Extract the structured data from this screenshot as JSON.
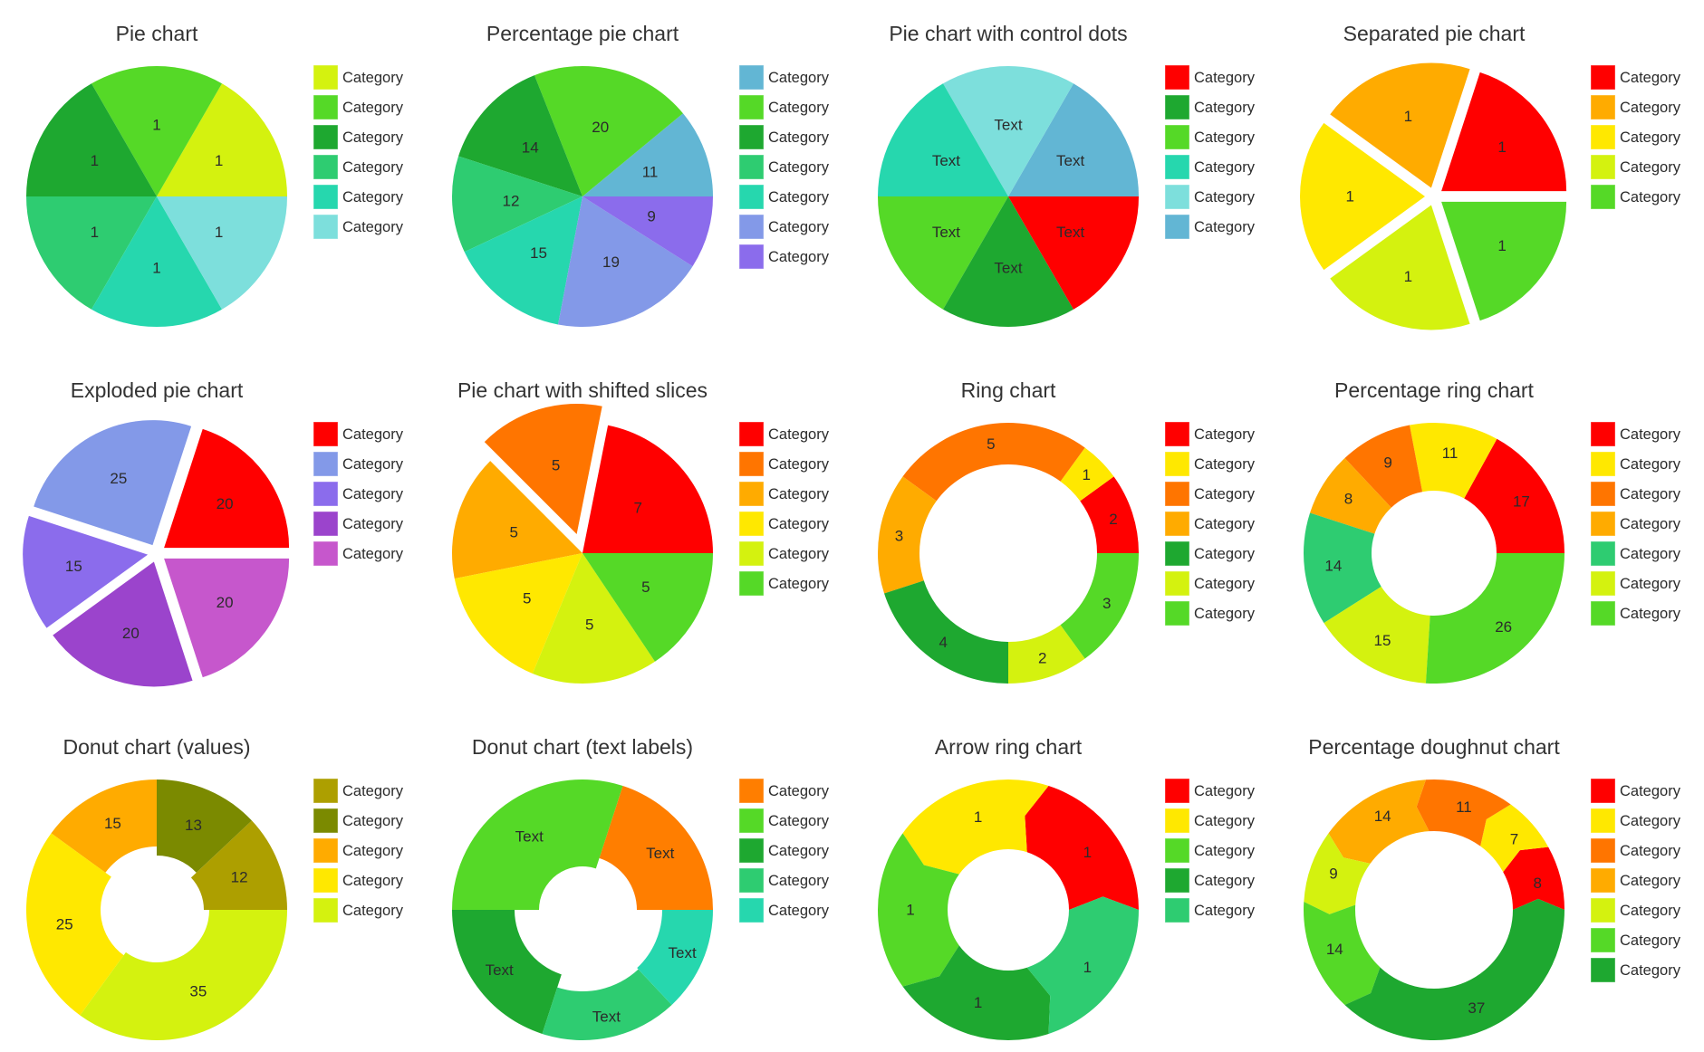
{
  "legend_label": "Category",
  "chart_data": [
    {
      "type": "pie",
      "variant": "plain",
      "title": "Pie chart",
      "slices": [
        {
          "label": "Category",
          "value": 1,
          "text": "1",
          "color": "#d4f20f"
        },
        {
          "label": "Category",
          "value": 1,
          "text": "1",
          "color": "#55d927"
        },
        {
          "label": "Category",
          "value": 1,
          "text": "1",
          "color": "#1ea830"
        },
        {
          "label": "Category",
          "value": 1,
          "text": "1",
          "color": "#2ecc71"
        },
        {
          "label": "Category",
          "value": 1,
          "text": "1",
          "color": "#26d7ae"
        },
        {
          "label": "Category",
          "value": 1,
          "text": "1",
          "color": "#7ddfdc"
        }
      ]
    },
    {
      "type": "pie",
      "variant": "plain",
      "title": "Percentage pie chart",
      "slices": [
        {
          "label": "Category",
          "value": 11,
          "text": "11",
          "color": "#62b6d4"
        },
        {
          "label": "Category",
          "value": 20,
          "text": "20",
          "color": "#55d927"
        },
        {
          "label": "Category",
          "value": 14,
          "text": "14",
          "color": "#1ea830"
        },
        {
          "label": "Category",
          "value": 12,
          "text": "12",
          "color": "#2ecc71"
        },
        {
          "label": "Category",
          "value": 15,
          "text": "15",
          "color": "#26d7ae"
        },
        {
          "label": "Category",
          "value": 19,
          "text": "19",
          "color": "#8399e8"
        },
        {
          "label": "Category",
          "value": 9,
          "text": "9",
          "color": "#8b6cec"
        }
      ]
    },
    {
      "type": "pie",
      "variant": "plain",
      "title": "Pie chart with control dots",
      "slices": [
        {
          "label": "Category",
          "value": 1,
          "text": "Text",
          "color": "#62b6d4"
        },
        {
          "label": "Category",
          "value": 1,
          "text": "Text",
          "color": "#7ddfdc"
        },
        {
          "label": "Category",
          "value": 1,
          "text": "Text",
          "color": "#26d7ae"
        },
        {
          "label": "Category",
          "value": 1,
          "text": "Text",
          "color": "#55d927"
        },
        {
          "label": "Category",
          "value": 1,
          "text": "Text",
          "color": "#1ea830"
        },
        {
          "label": "Category",
          "value": 1,
          "text": "Text",
          "color": "#ff0000"
        }
      ],
      "legend_order": [
        5,
        4,
        3,
        2,
        1,
        0
      ]
    },
    {
      "type": "pie",
      "variant": "separated",
      "title": "Separated pie chart",
      "slices": [
        {
          "label": "Category",
          "value": 1,
          "text": "1",
          "color": "#ff0000"
        },
        {
          "label": "Category",
          "value": 1,
          "text": "1",
          "color": "#ffab00"
        },
        {
          "label": "Category",
          "value": 1,
          "text": "1",
          "color": "#ffe800"
        },
        {
          "label": "Category",
          "value": 1,
          "text": "1",
          "color": "#d4f20f"
        },
        {
          "label": "Category",
          "value": 1,
          "text": "1",
          "color": "#55d927"
        }
      ]
    },
    {
      "type": "pie",
      "variant": "exploded",
      "title": "Exploded pie chart",
      "slices": [
        {
          "label": "Category",
          "value": 20,
          "text": "20",
          "color": "#ff0000"
        },
        {
          "label": "Category",
          "value": 25,
          "text": "25",
          "color": "#8399e8"
        },
        {
          "label": "Category",
          "value": 15,
          "text": "15",
          "color": "#8b6cec"
        },
        {
          "label": "Category",
          "value": 20,
          "text": "20",
          "color": "#9b44cc"
        },
        {
          "label": "Category",
          "value": 20,
          "text": "20",
          "color": "#c657cc"
        }
      ]
    },
    {
      "type": "pie",
      "variant": "shifted",
      "title": "Pie chart with shifted slices",
      "slices": [
        {
          "label": "Category",
          "value": 7,
          "text": "7",
          "color": "#ff0000"
        },
        {
          "label": "Category",
          "value": 5,
          "text": "5",
          "color": "#ff7500",
          "shifted": true
        },
        {
          "label": "Category",
          "value": 5,
          "text": "5",
          "color": "#ffab00"
        },
        {
          "label": "Category",
          "value": 5,
          "text": "5",
          "color": "#ffe800"
        },
        {
          "label": "Category",
          "value": 5,
          "text": "5",
          "color": "#d4f20f"
        },
        {
          "label": "Category",
          "value": 5,
          "text": "5",
          "color": "#55d927"
        }
      ]
    },
    {
      "type": "ring",
      "variant": "ring",
      "title": "Ring chart",
      "slices": [
        {
          "label": "Category",
          "value": 2,
          "text": "2",
          "color": "#ff0000"
        },
        {
          "label": "Category",
          "value": 1,
          "text": "1",
          "color": "#ffe800"
        },
        {
          "label": "Category",
          "value": 5,
          "text": "5",
          "color": "#ff7500"
        },
        {
          "label": "Category",
          "value": 3,
          "text": "3",
          "color": "#ffab00"
        },
        {
          "label": "Category",
          "value": 4,
          "text": "4",
          "color": "#1ea830"
        },
        {
          "label": "Category",
          "value": 2,
          "text": "2",
          "color": "#d4f20f"
        },
        {
          "label": "Category",
          "value": 3,
          "text": "3",
          "color": "#55d927"
        }
      ]
    },
    {
      "type": "ring",
      "variant": "ring-thick",
      "title": "Percentage ring chart",
      "slices": [
        {
          "label": "Category",
          "value": 17,
          "text": "17",
          "color": "#ff0000"
        },
        {
          "label": "Category",
          "value": 11,
          "text": "11",
          "color": "#ffe800"
        },
        {
          "label": "Category",
          "value": 9,
          "text": "9",
          "color": "#ff7500"
        },
        {
          "label": "Category",
          "value": 8,
          "text": "8",
          "color": "#ffab00"
        },
        {
          "label": "Category",
          "value": 14,
          "text": "14",
          "color": "#2ecc71"
        },
        {
          "label": "Category",
          "value": 15,
          "text": "15",
          "color": "#d4f20f"
        },
        {
          "label": "Category",
          "value": 26,
          "text": "26",
          "color": "#55d927"
        }
      ]
    },
    {
      "type": "ring",
      "variant": "donut-values",
      "title": "Donut chart (values)",
      "slices": [
        {
          "label": "Category",
          "value": 12,
          "text": "12",
          "color": "#ad9f00"
        },
        {
          "label": "Category",
          "value": 13,
          "text": "13",
          "color": "#7b8a00"
        },
        {
          "label": "Category",
          "value": 15,
          "text": "15",
          "color": "#ffab00"
        },
        {
          "label": "Category",
          "value": 25,
          "text": "25",
          "color": "#ffe800"
        },
        {
          "label": "Category",
          "value": 35,
          "text": "35",
          "color": "#d4f20f"
        }
      ]
    },
    {
      "type": "ring",
      "variant": "donut-text",
      "title": "Donut chart (text labels)",
      "slices": [
        {
          "label": "Category",
          "value": 20,
          "text": "Text",
          "color": "#ff7e00"
        },
        {
          "label": "Category",
          "value": 30,
          "text": "Text",
          "color": "#55d927"
        },
        {
          "label": "Category",
          "value": 20,
          "text": "Text",
          "color": "#1ea830"
        },
        {
          "label": "Category",
          "value": 17,
          "text": "Text",
          "color": "#2ecc71"
        },
        {
          "label": "Category",
          "value": 13,
          "text": "Text",
          "color": "#26d7ae"
        }
      ]
    },
    {
      "type": "ring",
      "variant": "arrow",
      "title": "Arrow ring chart",
      "slices": [
        {
          "label": "Category",
          "value": 1,
          "text": "1",
          "color": "#ff0000"
        },
        {
          "label": "Category",
          "value": 1,
          "text": "1",
          "color": "#ffe800"
        },
        {
          "label": "Category",
          "value": 1,
          "text": "1",
          "color": "#55d927"
        },
        {
          "label": "Category",
          "value": 1,
          "text": "1",
          "color": "#1ea830"
        },
        {
          "label": "Category",
          "value": 1,
          "text": "1",
          "color": "#2ecc71"
        }
      ]
    },
    {
      "type": "ring",
      "variant": "arrow-thin",
      "title": "Percentage doughnut chart",
      "slices": [
        {
          "label": "Category",
          "value": 8,
          "text": "8",
          "color": "#ff0000"
        },
        {
          "label": "Category",
          "value": 7,
          "text": "7",
          "color": "#ffe800"
        },
        {
          "label": "Category",
          "value": 11,
          "text": "11",
          "color": "#ff7500"
        },
        {
          "label": "Category",
          "value": 14,
          "text": "14",
          "color": "#ffab00"
        },
        {
          "label": "Category",
          "value": 9,
          "text": "9",
          "color": "#d4f20f"
        },
        {
          "label": "Category",
          "value": 14,
          "text": "14",
          "color": "#55d927"
        },
        {
          "label": "Category",
          "value": 37,
          "text": "37",
          "color": "#1ea830"
        }
      ]
    }
  ]
}
